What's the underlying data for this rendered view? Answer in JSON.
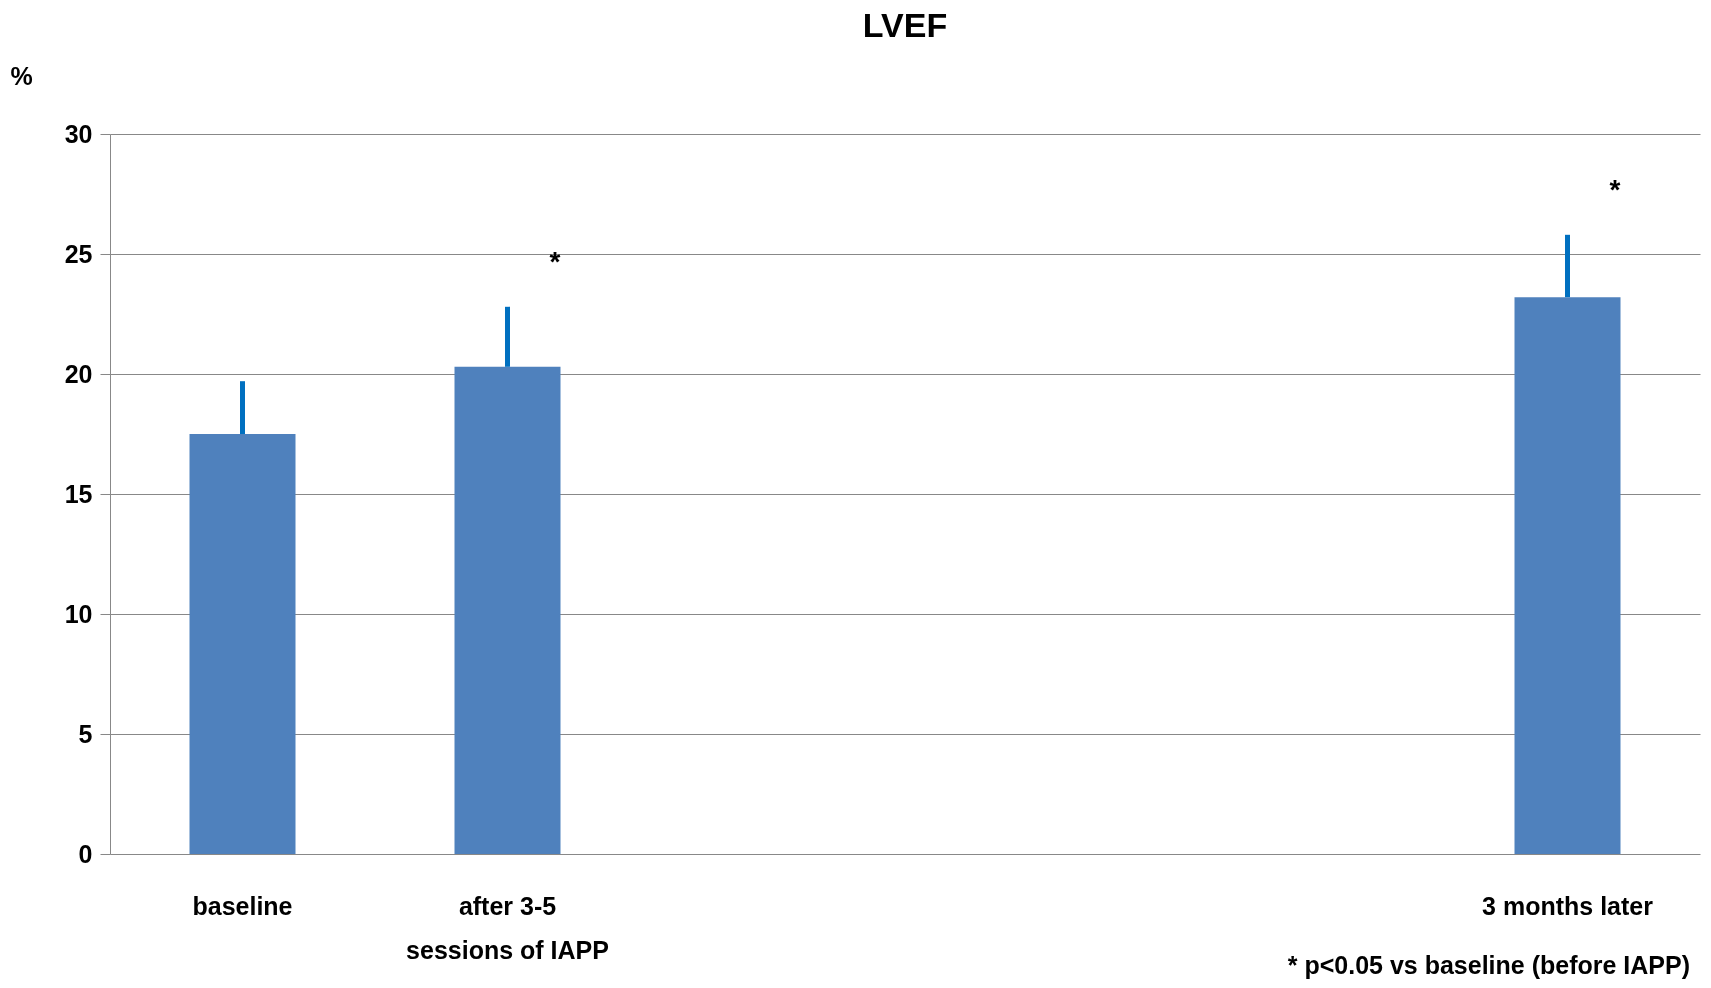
{
  "chart_data": {
    "type": "bar",
    "title": "LVEF",
    "ylabel": "%",
    "categories": [
      "baseline",
      "after 3-5\nsessions of IAPP",
      null,
      null,
      null,
      "3 months later"
    ],
    "values": [
      17.5,
      20.3,
      null,
      null,
      null,
      23.2
    ],
    "errors": [
      [
        17.5,
        19.7
      ],
      [
        20.3,
        22.8
      ],
      null,
      null,
      null,
      [
        23.2,
        25.8
      ]
    ],
    "color": "#4f81bd",
    "ylim": [
      0,
      30
    ],
    "yticks": [
      0,
      5,
      10,
      15,
      20,
      25,
      30
    ],
    "grid": "y",
    "annotations": [
      "*",
      "*",
      "* p<0.05 vs baseline (before IAPP)"
    ]
  }
}
